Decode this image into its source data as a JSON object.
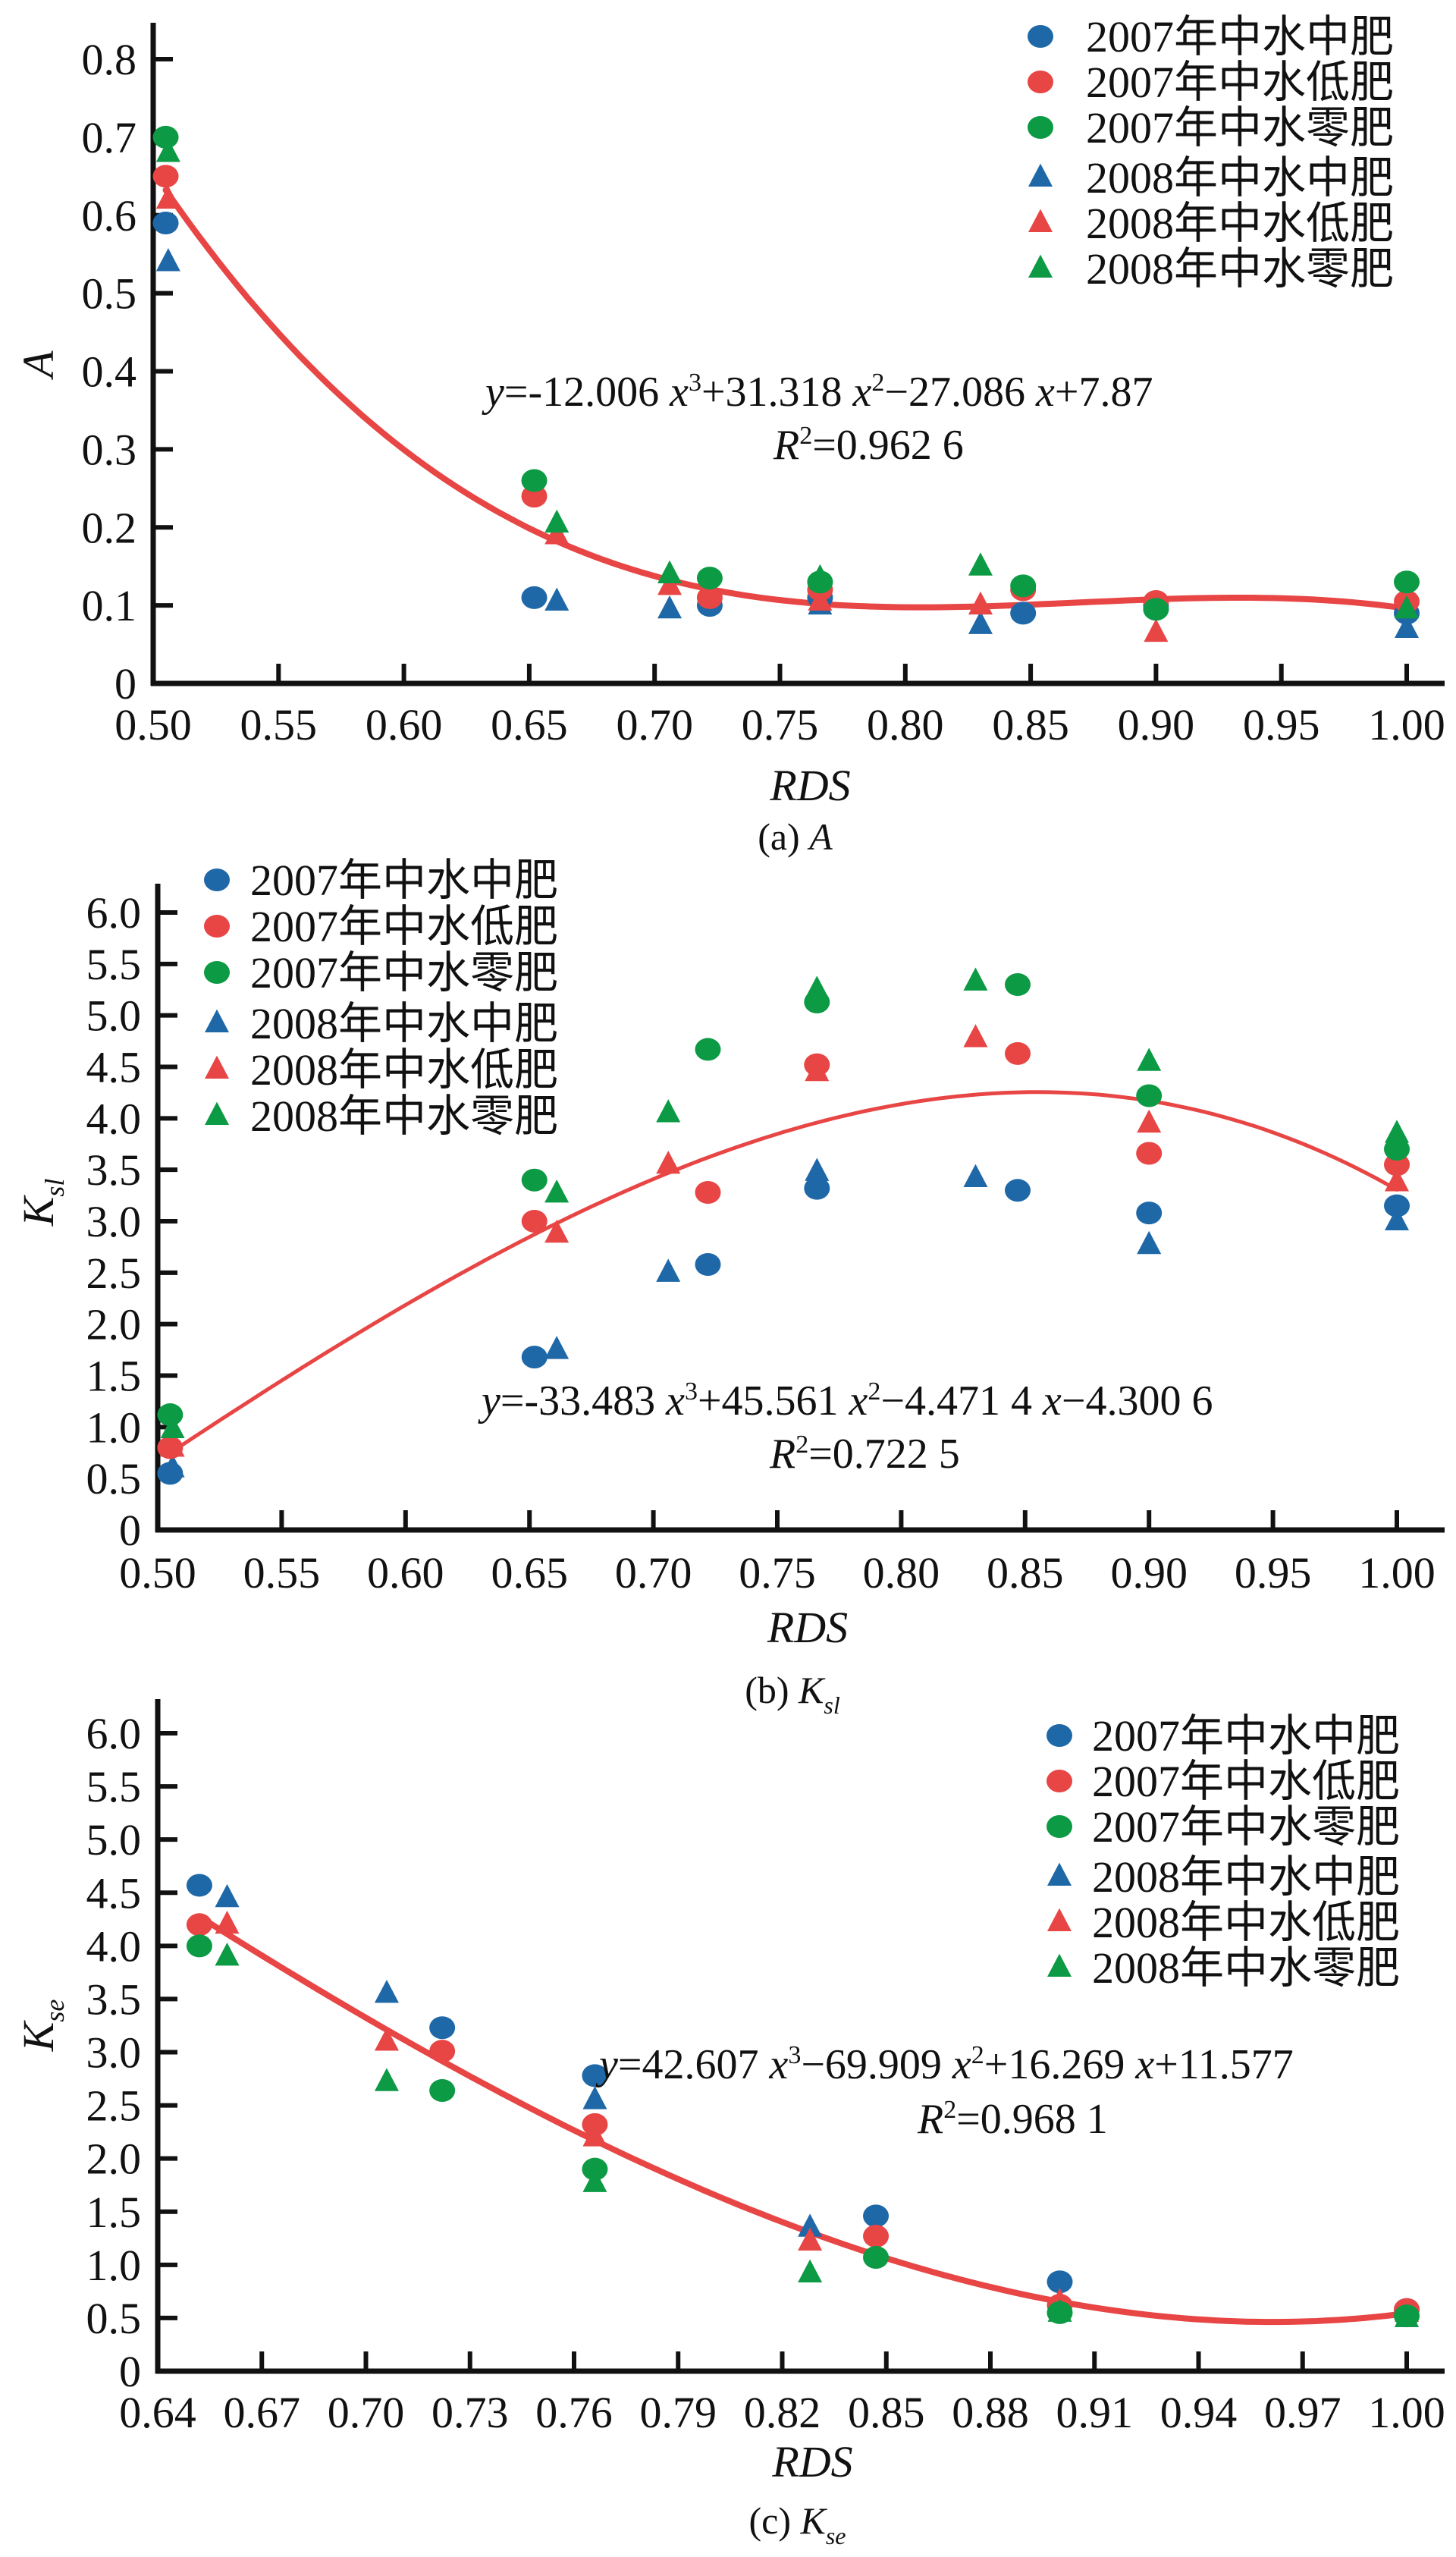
{
  "colors": {
    "blue": "#1f68a8",
    "red": "#e84545",
    "green": "#0c9a44",
    "fit": "#e84545",
    "axis": "#111111"
  },
  "legend_entries": [
    {
      "label": "2007年中水中肥",
      "marker": "circle",
      "color": "blue"
    },
    {
      "label": "2007年中水低肥",
      "marker": "circle",
      "color": "red"
    },
    {
      "label": "2007年中水零肥",
      "marker": "circle",
      "color": "green"
    },
    {
      "label": "2008年中水中肥",
      "marker": "triangle",
      "color": "blue"
    },
    {
      "label": "2008年中水低肥",
      "marker": "triangle",
      "color": "red"
    },
    {
      "label": "2008年中水零肥",
      "marker": "triangle",
      "color": "green"
    }
  ],
  "chart_data": [
    {
      "type": "scatter",
      "panel": "a",
      "caption_prefix": "(a)",
      "caption_symbol": "A",
      "caption_sub": "",
      "xlabel": "RDS",
      "ylabel": "A",
      "ylabel_sub": "",
      "xlim": [
        0.5,
        1.0
      ],
      "ylim": [
        0,
        0.8
      ],
      "xticks": [
        "0.50",
        "0.55",
        "0.60",
        "0.65",
        "0.70",
        "0.75",
        "0.80",
        "0.85",
        "0.90",
        "0.95",
        "1.00"
      ],
      "yticks": [
        "0",
        "0.1",
        "0.2",
        "0.3",
        "0.4",
        "0.5",
        "0.6",
        "0.7",
        "0.8"
      ],
      "legend_position": "top-right",
      "fit": {
        "coefficients": [
          -12.006,
          31.318,
          -27.086,
          7.87
        ],
        "x_range": [
          0.505,
          1.0
        ],
        "equation": "y=-12.006 x³+31.318 x²-27.086 x+7.87",
        "eq_parts": [
          "y",
          "=-12.006 ",
          "x",
          "3",
          "+31.318 ",
          "x",
          "2",
          "−27.086 ",
          "x",
          "+7.87"
        ],
        "r2_label": "R",
        "r2_value": "=0.962 6"
      },
      "series": [
        {
          "name": "2007年中水中肥",
          "x": [
            0.505,
            0.652,
            0.722,
            0.766,
            0.847,
            0.9,
            1.0
          ],
          "y": [
            0.59,
            0.11,
            0.1,
            0.11,
            0.09,
            0.1,
            0.09
          ]
        },
        {
          "name": "2007年中水低肥",
          "x": [
            0.505,
            0.652,
            0.722,
            0.766,
            0.847,
            0.9,
            1.0
          ],
          "y": [
            0.65,
            0.24,
            0.11,
            0.12,
            0.12,
            0.105,
            0.105
          ]
        },
        {
          "name": "2007年中水零肥",
          "x": [
            0.505,
            0.652,
            0.722,
            0.766,
            0.847,
            0.9,
            1.0
          ],
          "y": [
            0.7,
            0.26,
            0.135,
            0.13,
            0.125,
            0.095,
            0.13
          ]
        },
        {
          "name": "2008年中水中肥",
          "x": [
            0.506,
            0.661,
            0.706,
            0.766,
            0.83,
            1.0
          ],
          "y": [
            0.54,
            0.105,
            0.095,
            0.1,
            0.075,
            0.07
          ]
        },
        {
          "name": "2008年中水低肥",
          "x": [
            0.506,
            0.661,
            0.706,
            0.766,
            0.83,
            0.9
          ],
          "y": [
            0.62,
            0.19,
            0.125,
            0.105,
            0.1,
            0.065
          ]
        },
        {
          "name": "2008年中水零肥",
          "x": [
            0.506,
            0.661,
            0.706,
            0.766,
            0.83,
            1.0
          ],
          "y": [
            0.68,
            0.205,
            0.14,
            0.135,
            0.15,
            0.095
          ]
        }
      ]
    },
    {
      "type": "scatter",
      "panel": "b",
      "caption_prefix": "(b)",
      "caption_symbol": "K",
      "caption_sub": "sl",
      "xlabel": "RDS",
      "ylabel": "K",
      "ylabel_sub": "sl",
      "xlim": [
        0.5,
        1.0
      ],
      "ylim": [
        0,
        6.0
      ],
      "xticks": [
        "0.50",
        "0.55",
        "0.60",
        "0.65",
        "0.70",
        "0.75",
        "0.80",
        "0.85",
        "0.90",
        "0.95",
        "1.00"
      ],
      "yticks": [
        "0",
        "0.5",
        "1.0",
        "1.5",
        "2.0",
        "2.5",
        "3.0",
        "3.5",
        "4.0",
        "4.5",
        "5.0",
        "5.5",
        "6.0"
      ],
      "legend_position": "top-left",
      "fit": {
        "coefficients": [
          -33.483,
          45.561,
          -4.4714,
          -4.3006
        ],
        "x_range": [
          0.505,
          1.0
        ],
        "equation": "y=-33.483 x³+45.561 x²-4.471 4 x-4.300 6",
        "eq_parts": [
          "y",
          "=-33.483 ",
          "x",
          "3",
          "+45.561 ",
          "x",
          "2",
          "−4.471 4 ",
          "x",
          "−4.300 6"
        ],
        "r2_label": "R",
        "r2_value": "=0.722 5"
      },
      "series": [
        {
          "name": "2007年中水中肥",
          "x": [
            0.505,
            0.652,
            0.722,
            0.766,
            0.847,
            0.9,
            1.0
          ],
          "y": [
            0.55,
            1.68,
            2.58,
            3.32,
            3.3,
            3.08,
            3.15
          ]
        },
        {
          "name": "2007年中水低肥",
          "x": [
            0.505,
            0.652,
            0.722,
            0.766,
            0.847,
            0.9,
            1.0
          ],
          "y": [
            0.8,
            3.0,
            3.28,
            4.52,
            4.63,
            3.66,
            3.55
          ]
        },
        {
          "name": "2007年中水零肥",
          "x": [
            0.505,
            0.652,
            0.722,
            0.766,
            0.847,
            0.9,
            1.0
          ],
          "y": [
            1.12,
            3.4,
            4.67,
            5.13,
            5.3,
            4.22,
            3.7
          ]
        },
        {
          "name": "2008年中水中肥",
          "x": [
            0.506,
            0.661,
            0.706,
            0.766,
            0.83,
            0.9,
            1.0
          ],
          "y": [
            0.6,
            1.75,
            2.5,
            3.48,
            3.42,
            2.77,
            3.0
          ]
        },
        {
          "name": "2008年中水低肥",
          "x": [
            0.506,
            0.661,
            0.706,
            0.766,
            0.83,
            0.9,
            1.0
          ],
          "y": [
            0.8,
            2.88,
            3.55,
            4.45,
            4.78,
            3.95,
            3.38
          ]
        },
        {
          "name": "2008年中水零肥",
          "x": [
            0.506,
            0.661,
            0.706,
            0.766,
            0.83,
            0.9,
            1.0
          ],
          "y": [
            0.98,
            3.27,
            4.05,
            5.25,
            5.33,
            4.55,
            3.85
          ]
        }
      ]
    },
    {
      "type": "scatter",
      "panel": "c",
      "caption_prefix": "(c)",
      "caption_symbol": "K",
      "caption_sub": "se",
      "xlabel": "RDS",
      "ylabel": "K",
      "ylabel_sub": "se",
      "xlim": [
        0.64,
        1.0
      ],
      "ylim": [
        0,
        6.0
      ],
      "xticks": [
        "0.64",
        "0.67",
        "0.70",
        "0.73",
        "0.76",
        "0.79",
        "0.82",
        "0.85",
        "0.88",
        "0.91",
        "0.94",
        "0.97",
        "1.00"
      ],
      "yticks": [
        "0",
        "0.5",
        "1.0",
        "1.5",
        "2.0",
        "2.5",
        "3.0",
        "3.5",
        "4.0",
        "4.5",
        "5.0",
        "5.5",
        "6.0"
      ],
      "legend_position": "top-right",
      "fit": {
        "coefficients": [
          42.607,
          -69.909,
          16.269,
          11.577
        ],
        "x_range": [
          0.652,
          1.0
        ],
        "equation": "y=42.607 x³-69.909 x²+16.269 x+11.577",
        "eq_parts": [
          "y",
          "=42.607 ",
          "x",
          "3",
          "−69.909 ",
          "x",
          "2",
          "+16.269 ",
          "x",
          "+11.577"
        ],
        "r2_label": "R",
        "r2_value": "=0.968 1"
      },
      "series": [
        {
          "name": "2007年中水中肥",
          "x": [
            0.652,
            0.722,
            0.766,
            0.847,
            0.9,
            1.0
          ],
          "y": [
            4.57,
            3.23,
            2.78,
            1.46,
            0.84,
            0.58
          ]
        },
        {
          "name": "2007年中水低肥",
          "x": [
            0.652,
            0.722,
            0.766,
            0.847,
            0.9,
            1.0
          ],
          "y": [
            4.2,
            3.01,
            2.32,
            1.27,
            0.62,
            0.58
          ]
        },
        {
          "name": "2007年中水零肥",
          "x": [
            0.652,
            0.722,
            0.766,
            0.847,
            0.9,
            1.0
          ],
          "y": [
            4.0,
            2.64,
            1.9,
            1.07,
            0.55,
            0.52
          ]
        },
        {
          "name": "2008年中水中肥",
          "x": [
            0.66,
            0.706,
            0.766,
            0.828,
            0.9,
            1.0
          ],
          "y": [
            4.45,
            3.55,
            2.55,
            1.35,
            0.6,
            0.5
          ]
        },
        {
          "name": "2008年中水低肥",
          "x": [
            0.66,
            0.706,
            0.766,
            0.828,
            0.9,
            1.0
          ],
          "y": [
            4.2,
            3.1,
            2.2,
            1.22,
            0.65,
            0.55
          ]
        },
        {
          "name": "2008年中水零肥",
          "x": [
            0.66,
            0.706,
            0.766,
            0.828,
            0.9,
            1.0
          ],
          "y": [
            3.9,
            2.72,
            1.77,
            0.92,
            0.55,
            0.5
          ]
        }
      ]
    }
  ]
}
